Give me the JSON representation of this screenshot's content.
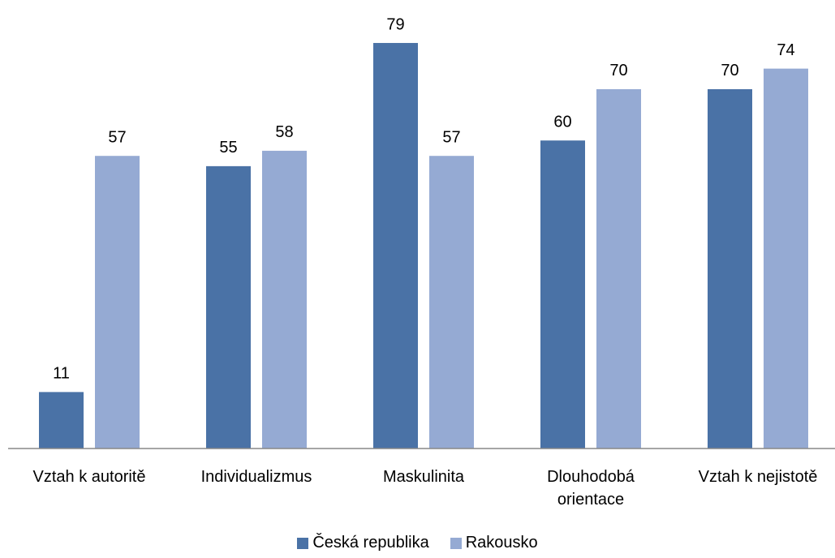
{
  "chart_data": {
    "type": "bar",
    "categories": [
      "Vztah k autoritě",
      "Individualizmus",
      "Maskulinita",
      "Dlouhodobá orientace",
      "Vztah k nejistotě"
    ],
    "series": [
      {
        "name": "Česká republika",
        "color": "#4a72a6",
        "values": [
          11,
          55,
          79,
          60,
          70
        ]
      },
      {
        "name": "Rakousko",
        "color": "#95aad3",
        "values": [
          57,
          58,
          57,
          70,
          74
        ]
      }
    ],
    "ylim": [
      0,
      85
    ],
    "legend": "bottom"
  }
}
